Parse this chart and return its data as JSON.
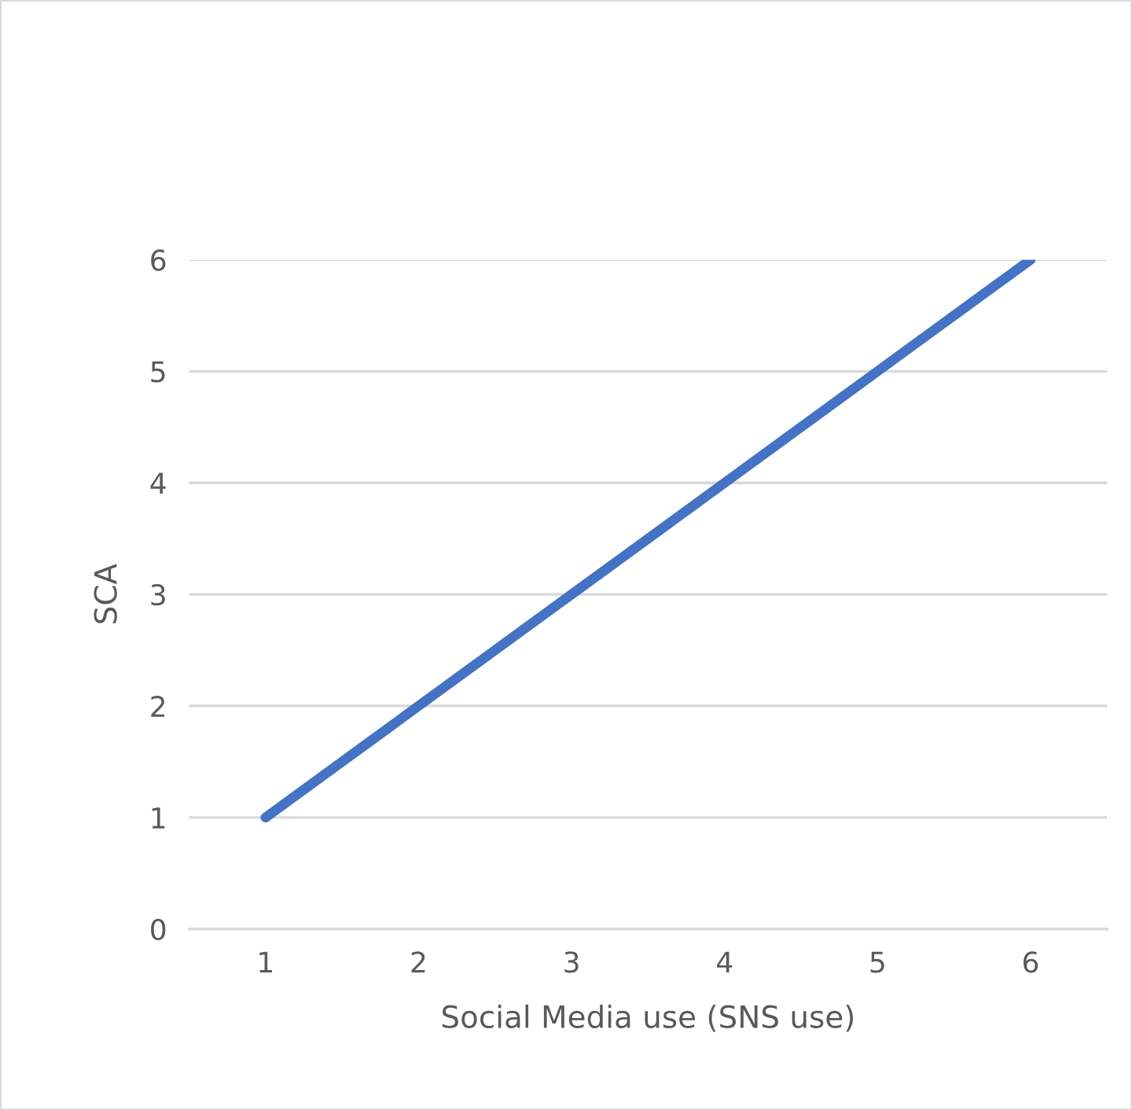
{
  "chart_data": {
    "type": "line",
    "xlabel": "Social Media use (SNS use)",
    "ylabel": "SCA",
    "categories": [
      "1",
      "2",
      "3",
      "4",
      "5",
      "6"
    ],
    "series": [
      {
        "color": "#4472c4",
        "values": [
          1,
          2,
          3,
          4,
          5,
          6
        ]
      }
    ],
    "ylim": [
      0,
      6
    ],
    "yticks": [
      0,
      1,
      2,
      3,
      4,
      5,
      6
    ],
    "grid": "y",
    "legend": false,
    "marker": "none",
    "line_style": "solid"
  }
}
